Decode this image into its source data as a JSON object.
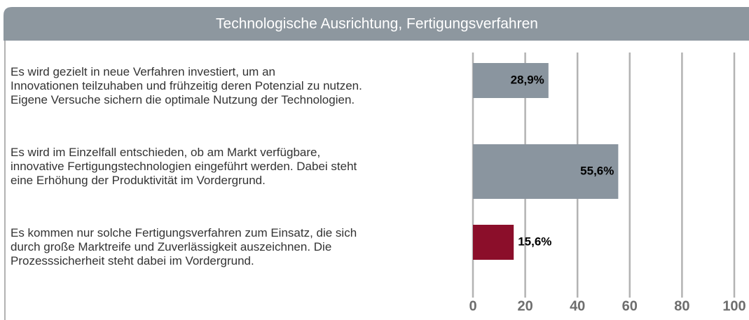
{
  "chart_data": {
    "type": "bar",
    "orientation": "horizontal",
    "title": "Technologische Ausrichtung, Fertigungsverfahren",
    "categories": [
      "Es wird gezielt in neue Verfahren investiert, um an\nInnovationen teilzuhaben und frühzeitig deren Potenzial zu nutzen.\nEigene Versuche sichern die optimale Nutzung der Technologien.",
      "Es wird im Einzelfall entschieden, ob am Markt verfügbare,\ninnovative Fertigungstechnologien eingeführt werden. Dabei steht\neine Erhöhung der Produktivität im Vordergrund.",
      "Es kommen nur solche Fertigungsverfahren zum Einsatz, die sich\ndurch große Marktreife und Zuverlässigkeit auszeichnen. Die\nProzesssicherheit steht dabei im Vordergrund."
    ],
    "values": [
      28.9,
      55.6,
      15.6
    ],
    "value_labels": [
      "28,9%",
      "55,6%",
      "15,6%"
    ],
    "colors": [
      "#8a959f",
      "#8a959f",
      "#8b0e2a"
    ],
    "xlim": [
      0,
      100
    ],
    "xticks": [
      0,
      20,
      40,
      60,
      80,
      100
    ],
    "grid": true
  }
}
